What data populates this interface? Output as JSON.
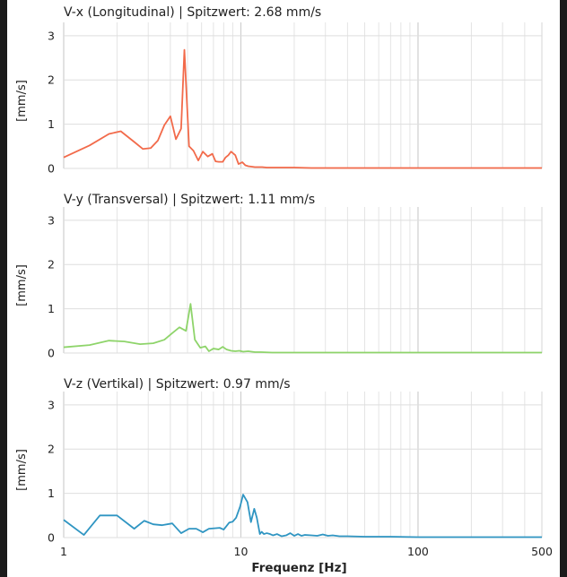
{
  "chart_data": [
    {
      "type": "line",
      "title": "V-x (Longitudinal) | Spitzwert: 2.68 mm/s",
      "ylabel": "[mm/s]",
      "xscale": "log",
      "xlim": [
        1,
        500
      ],
      "ylim": [
        0,
        3.3
      ],
      "yticks": [
        0,
        1,
        2,
        3
      ],
      "color": "#f26a4a",
      "grid": true,
      "x": [
        1,
        1.4,
        1.8,
        2.1,
        2.5,
        2.8,
        3.1,
        3.4,
        3.7,
        4.0,
        4.3,
        4.6,
        4.8,
        5.1,
        5.4,
        5.75,
        6.1,
        6.5,
        6.9,
        7.2,
        7.5,
        7.9,
        8.2,
        8.5,
        8.8,
        9.3,
        9.7,
        10.2,
        10.6,
        11.0,
        11.5,
        12.0,
        12.6,
        13.2,
        14,
        15,
        17,
        20,
        25,
        30,
        40,
        60,
        100,
        200,
        500
      ],
      "y": [
        0.25,
        0.52,
        0.78,
        0.84,
        0.6,
        0.44,
        0.46,
        0.63,
        0.98,
        1.18,
        0.66,
        0.9,
        2.68,
        0.5,
        0.4,
        0.18,
        0.38,
        0.27,
        0.33,
        0.16,
        0.15,
        0.15,
        0.25,
        0.3,
        0.38,
        0.3,
        0.1,
        0.14,
        0.07,
        0.05,
        0.04,
        0.03,
        0.03,
        0.03,
        0.02,
        0.02,
        0.02,
        0.02,
        0.01,
        0.01,
        0.01,
        0.01,
        0.01,
        0.01,
        0.01
      ]
    },
    {
      "type": "line",
      "title": "V-y (Transversal) | Spitzwert: 1.11 mm/s",
      "ylabel": "[mm/s]",
      "xscale": "log",
      "xlim": [
        1,
        500
      ],
      "ylim": [
        0,
        3.3
      ],
      "yticks": [
        0,
        1,
        2,
        3
      ],
      "color": "#8ed46a",
      "grid": true,
      "x": [
        1,
        1.4,
        1.8,
        2.2,
        2.7,
        3.2,
        3.7,
        4.1,
        4.5,
        4.9,
        5.2,
        5.5,
        5.9,
        6.3,
        6.6,
        7.0,
        7.5,
        7.9,
        8.3,
        8.8,
        9.3,
        9.8,
        10.3,
        11,
        12,
        13,
        15,
        18,
        25,
        40,
        100,
        500
      ],
      "y": [
        0.13,
        0.18,
        0.28,
        0.26,
        0.2,
        0.22,
        0.3,
        0.45,
        0.58,
        0.5,
        1.11,
        0.3,
        0.12,
        0.15,
        0.04,
        0.1,
        0.08,
        0.14,
        0.08,
        0.05,
        0.04,
        0.05,
        0.03,
        0.04,
        0.02,
        0.02,
        0.01,
        0.01,
        0.01,
        0.01,
        0.01,
        0.01
      ]
    },
    {
      "type": "line",
      "title": "V-z (Vertikal) | Spitzwert: 0.97 mm/s",
      "ylabel": "[mm/s]",
      "xscale": "log",
      "xlim": [
        1,
        500
      ],
      "ylim": [
        0,
        3.3
      ],
      "yticks": [
        0,
        1,
        2,
        3
      ],
      "xticks": [
        1,
        10,
        100,
        500
      ],
      "xlabel": "Frequenz [Hz]",
      "color": "#2f95c2",
      "grid": true,
      "x": [
        1,
        1.3,
        1.6,
        2.0,
        2.5,
        2.85,
        3.2,
        3.6,
        4.1,
        4.6,
        5.1,
        5.6,
        6.1,
        6.6,
        7.1,
        7.6,
        8.0,
        8.6,
        9.0,
        9.4,
        9.9,
        10.3,
        10.9,
        11.4,
        11.9,
        12.3,
        12.8,
        13.1,
        13.5,
        14.0,
        14.6,
        15.2,
        16,
        17,
        18,
        19,
        20,
        21,
        22,
        23,
        25,
        27,
        29,
        31,
        33,
        36,
        40,
        50,
        70,
        100,
        200,
        500
      ],
      "y": [
        0.4,
        0.06,
        0.5,
        0.5,
        0.2,
        0.38,
        0.3,
        0.28,
        0.32,
        0.1,
        0.2,
        0.2,
        0.12,
        0.2,
        0.21,
        0.22,
        0.18,
        0.34,
        0.36,
        0.45,
        0.7,
        0.97,
        0.8,
        0.35,
        0.65,
        0.45,
        0.08,
        0.13,
        0.08,
        0.1,
        0.08,
        0.05,
        0.08,
        0.03,
        0.05,
        0.1,
        0.04,
        0.08,
        0.04,
        0.06,
        0.05,
        0.04,
        0.07,
        0.04,
        0.05,
        0.03,
        0.03,
        0.02,
        0.02,
        0.01,
        0.01,
        0.01
      ]
    }
  ]
}
